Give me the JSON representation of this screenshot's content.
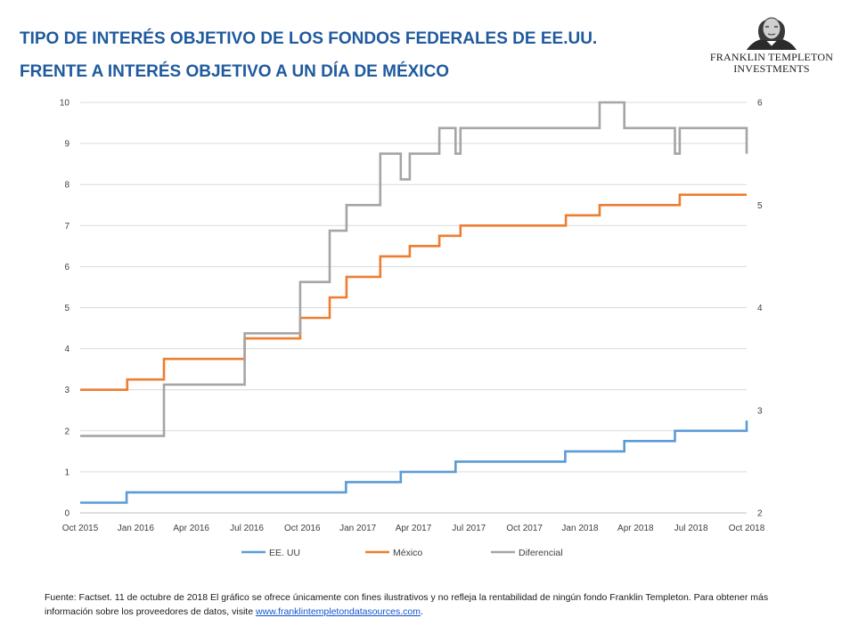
{
  "header": {
    "title_line1": "TIPO DE INTERÉS OBJETIVO DE LOS FONDOS FEDERALES DE EE.UU.",
    "title_line2": "FRENTE A INTERÉS OBJETIVO A UN DÍA DE MÉXICO"
  },
  "logo": {
    "line1": "FRANKLIN TEMPLETON",
    "line2": "INVESTMENTS"
  },
  "footer": {
    "text": "Fuente: Factset. 11 de octubre de 2018 El gráfico se ofrece únicamente con fines ilustrativos y no refleja la rentabilidad de ningún fondo Franklin Templeton. Para obtener más información sobre los proveedores de datos, visite ",
    "link_text": "www.franklintempletondatasources.com",
    "suffix": "."
  },
  "chart_data": {
    "type": "line",
    "step": true,
    "x_ticks": [
      "Oct 2015",
      "Jan 2016",
      "Apr 2016",
      "Jul 2016",
      "Oct 2016",
      "Jan 2017",
      "Apr 2017",
      "Jul 2017",
      "Oct 2017",
      "Jan 2018",
      "Apr 2018",
      "Jul 2018",
      "Oct 2018"
    ],
    "xlim": [
      "2015-10-01",
      "2018-10-11"
    ],
    "y_left": {
      "ticks": [
        "0",
        "1",
        "2",
        "3",
        "4",
        "5",
        "6",
        "7",
        "8",
        "9",
        "10"
      ],
      "ylim": [
        0,
        10
      ]
    },
    "y_right": {
      "ticks": [
        "2",
        "3",
        "4",
        "5",
        "6"
      ],
      "ylim": [
        2,
        6
      ]
    },
    "grid": true,
    "legend_position": "bottom",
    "series": [
      {
        "name": "EE. UU",
        "axis": "left",
        "color": "#5b9bd5",
        "points": [
          [
            "2015-10-01",
            0.25
          ],
          [
            "2015-12-17",
            0.5
          ],
          [
            "2016-12-15",
            0.75
          ],
          [
            "2017-03-16",
            1.0
          ],
          [
            "2017-06-15",
            1.25
          ],
          [
            "2017-12-14",
            1.5
          ],
          [
            "2018-03-22",
            1.75
          ],
          [
            "2018-06-14",
            2.0
          ],
          [
            "2018-09-27",
            2.0
          ],
          [
            "2018-10-11",
            2.25
          ]
        ]
      },
      {
        "name": "México",
        "axis": "left",
        "color": "#ed7d31",
        "points": [
          [
            "2015-10-01",
            3.0
          ],
          [
            "2015-12-18",
            3.25
          ],
          [
            "2016-02-17",
            3.75
          ],
          [
            "2016-06-30",
            4.25
          ],
          [
            "2016-09-30",
            4.75
          ],
          [
            "2016-11-18",
            5.25
          ],
          [
            "2016-12-16",
            5.75
          ],
          [
            "2017-02-10",
            6.25
          ],
          [
            "2017-03-31",
            6.5
          ],
          [
            "2017-05-19",
            6.75
          ],
          [
            "2017-06-23",
            7.0
          ],
          [
            "2017-12-15",
            7.25
          ],
          [
            "2018-02-09",
            7.5
          ],
          [
            "2018-06-22",
            7.75
          ],
          [
            "2018-10-11",
            7.75
          ]
        ]
      },
      {
        "name": "Diferencial",
        "axis": "right",
        "color": "#a5a5a5",
        "points": [
          [
            "2015-10-01",
            2.75
          ],
          [
            "2016-02-17",
            3.25
          ],
          [
            "2016-06-30",
            3.75
          ],
          [
            "2016-09-30",
            4.25
          ],
          [
            "2016-11-18",
            4.75
          ],
          [
            "2016-12-16",
            5.0
          ],
          [
            "2017-02-10",
            5.5
          ],
          [
            "2017-03-16",
            5.25
          ],
          [
            "2017-03-31",
            5.5
          ],
          [
            "2017-05-19",
            5.75
          ],
          [
            "2017-06-15",
            5.5
          ],
          [
            "2017-06-23",
            5.75
          ],
          [
            "2018-02-09",
            6.0
          ],
          [
            "2018-03-22",
            5.75
          ],
          [
            "2018-06-14",
            5.5
          ],
          [
            "2018-06-22",
            5.75
          ],
          [
            "2018-10-11",
            5.5
          ]
        ]
      }
    ]
  }
}
